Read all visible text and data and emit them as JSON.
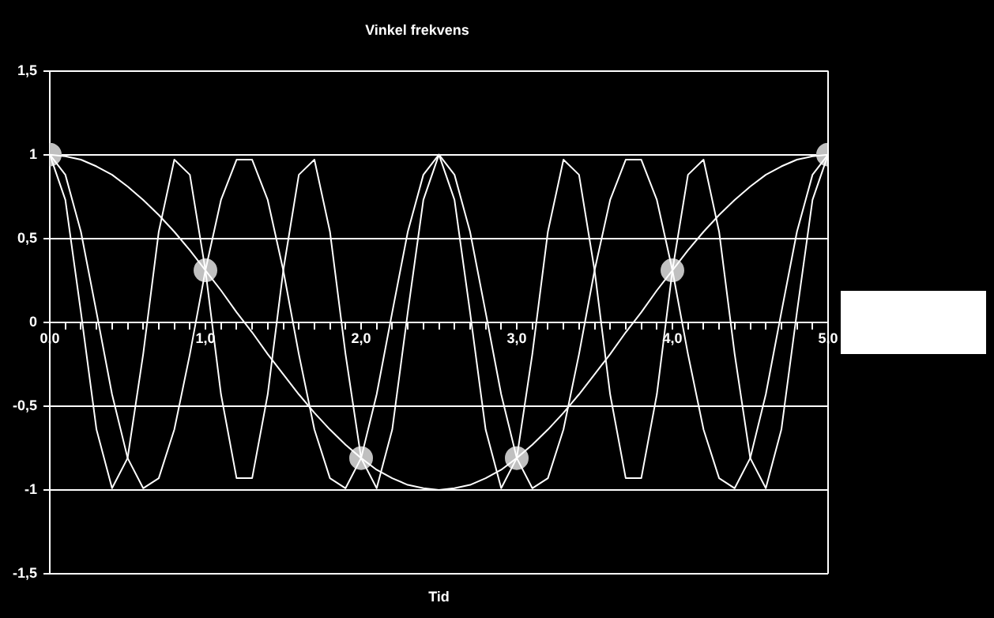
{
  "chart_data": {
    "type": "line",
    "title": "Vinkel frekvens",
    "xlabel": "Tid",
    "xlim": [
      0,
      5
    ],
    "ylim": [
      -1.5,
      1.5
    ],
    "xticks": [
      {
        "value": 0,
        "label": "0,0"
      },
      {
        "value": 0.1,
        "label": null
      },
      {
        "value": 0.2,
        "label": null
      },
      {
        "value": 0.3,
        "label": null
      },
      {
        "value": 0.4,
        "label": null
      },
      {
        "value": 0.5,
        "label": null
      },
      {
        "value": 0.6,
        "label": null
      },
      {
        "value": 0.7,
        "label": null
      },
      {
        "value": 0.8,
        "label": null
      },
      {
        "value": 0.9,
        "label": null
      },
      {
        "value": 1,
        "label": "1,0"
      },
      {
        "value": 1.1,
        "label": null
      },
      {
        "value": 1.2,
        "label": null
      },
      {
        "value": 1.3,
        "label": null
      },
      {
        "value": 1.4,
        "label": null
      },
      {
        "value": 1.5,
        "label": null
      },
      {
        "value": 1.6,
        "label": null
      },
      {
        "value": 1.7,
        "label": null
      },
      {
        "value": 1.8,
        "label": null
      },
      {
        "value": 1.9,
        "label": null
      },
      {
        "value": 2,
        "label": "2,0"
      },
      {
        "value": 2.1,
        "label": null
      },
      {
        "value": 2.2,
        "label": null
      },
      {
        "value": 2.3,
        "label": null
      },
      {
        "value": 2.4,
        "label": null
      },
      {
        "value": 2.5,
        "label": null
      },
      {
        "value": 2.6,
        "label": null
      },
      {
        "value": 2.7,
        "label": null
      },
      {
        "value": 2.8,
        "label": null
      },
      {
        "value": 2.9,
        "label": null
      },
      {
        "value": 3,
        "label": "3,0"
      },
      {
        "value": 3.1,
        "label": null
      },
      {
        "value": 3.2,
        "label": null
      },
      {
        "value": 3.3,
        "label": null
      },
      {
        "value": 3.4,
        "label": null
      },
      {
        "value": 3.5,
        "label": null
      },
      {
        "value": 3.6,
        "label": null
      },
      {
        "value": 3.7,
        "label": null
      },
      {
        "value": 3.8,
        "label": null
      },
      {
        "value": 3.9,
        "label": null
      },
      {
        "value": 4,
        "label": "4,0"
      },
      {
        "value": 4.1,
        "label": null
      },
      {
        "value": 4.2,
        "label": null
      },
      {
        "value": 4.3,
        "label": null
      },
      {
        "value": 4.4,
        "label": null
      },
      {
        "value": 4.5,
        "label": null
      },
      {
        "value": 4.6,
        "label": null
      },
      {
        "value": 4.7,
        "label": null
      },
      {
        "value": 4.8,
        "label": null
      },
      {
        "value": 4.9,
        "label": null
      },
      {
        "value": 5,
        "label": "5,0"
      }
    ],
    "yticks": [
      {
        "value": -1.5,
        "label": "-1,5"
      },
      {
        "value": -1,
        "label": "-1"
      },
      {
        "value": -0.5,
        "label": "-0,5"
      },
      {
        "value": 0,
        "label": "0"
      },
      {
        "value": 0.5,
        "label": "0,5"
      },
      {
        "value": 1,
        "label": "1"
      },
      {
        "value": 1.5,
        "label": "1,5"
      }
    ],
    "x": [
      0,
      0.1,
      0.2,
      0.3,
      0.4,
      0.5,
      0.6,
      0.7,
      0.8,
      0.9,
      1,
      1.1,
      1.2,
      1.3,
      1.4,
      1.5,
      1.6,
      1.7,
      1.8,
      1.9,
      2,
      2.1,
      2.2,
      2.3,
      2.4,
      2.5,
      2.6,
      2.7,
      2.8,
      2.9,
      3,
      3.1,
      3.2,
      3.3,
      3.4,
      3.5,
      3.6,
      3.7,
      3.8,
      3.9,
      4,
      4.1,
      4.2,
      4.3,
      4.4,
      4.5,
      4.6,
      4.7,
      4.8,
      4.9,
      5
    ],
    "grid": "y",
    "legend": false,
    "line_style": "solid",
    "series": [
      {
        "color": "#ffffff",
        "marker": "none",
        "values": [
          1,
          0.99,
          0.97,
          0.93,
          0.88,
          0.81,
          0.73,
          0.64,
          0.54,
          0.43,
          0.31,
          0.19,
          0.06,
          -0.06,
          -0.19,
          -0.31,
          -0.43,
          -0.54,
          -0.64,
          -0.73,
          -0.81,
          -0.88,
          -0.93,
          -0.97,
          -0.99,
          -1,
          -0.99,
          -0.97,
          -0.93,
          -0.88,
          -0.81,
          -0.73,
          -0.64,
          -0.54,
          -0.43,
          -0.31,
          -0.19,
          -0.06,
          0.06,
          0.19,
          0.31,
          0.43,
          0.54,
          0.64,
          0.73,
          0.81,
          0.88,
          0.93,
          0.97,
          0.99,
          1
        ]
      },
      {
        "color": "#ffffff",
        "marker": "none",
        "values": [
          1,
          0.88,
          0.54,
          0.06,
          -0.43,
          -0.81,
          -0.99,
          -0.93,
          -0.64,
          -0.19,
          0.31,
          0.73,
          0.97,
          0.97,
          0.73,
          0.31,
          -0.19,
          -0.64,
          -0.93,
          -0.99,
          -0.81,
          -0.43,
          0.06,
          0.54,
          0.88,
          1,
          0.88,
          0.54,
          0.06,
          -0.43,
          -0.81,
          -0.99,
          -0.93,
          -0.64,
          -0.19,
          0.31,
          0.73,
          0.97,
          0.97,
          0.73,
          0.31,
          -0.19,
          -0.64,
          -0.93,
          -0.99,
          -0.81,
          -0.43,
          0.06,
          0.54,
          0.88,
          1
        ]
      },
      {
        "color": "#ffffff",
        "marker": "none",
        "values": [
          1,
          0.73,
          0.06,
          -0.64,
          -0.99,
          -0.81,
          -0.19,
          0.54,
          0.97,
          0.88,
          0.31,
          -0.43,
          -0.93,
          -0.93,
          -0.43,
          0.31,
          0.88,
          0.97,
          0.54,
          -0.19,
          -0.81,
          -0.99,
          -0.64,
          0.06,
          0.73,
          1,
          0.73,
          0.06,
          -0.64,
          -0.99,
          -0.81,
          -0.19,
          0.54,
          0.97,
          0.88,
          0.31,
          -0.43,
          -0.93,
          -0.93,
          -0.43,
          0.31,
          0.88,
          0.97,
          0.54,
          -0.19,
          -0.81,
          -0.99,
          -0.64,
          0.06,
          0.73,
          1
        ]
      },
      {
        "type": "scatter",
        "color": "#c0c0c0",
        "marker": "circle",
        "x": [
          0,
          1,
          2,
          3,
          4,
          5
        ],
        "values": [
          1,
          0.31,
          -0.81,
          -0.81,
          0.31,
          1
        ]
      }
    ]
  }
}
